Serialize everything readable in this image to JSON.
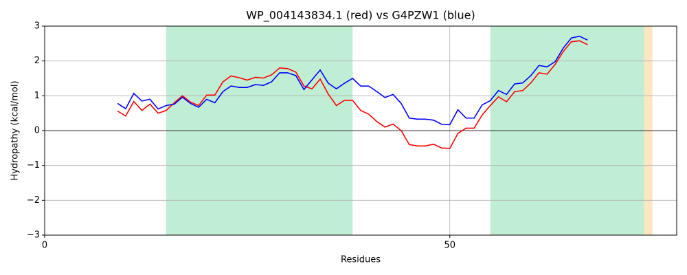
{
  "chart_data": {
    "type": "line",
    "title": "WP_004143834.1 (red) vs G4PZW1 (blue)",
    "xlabel": "Residues",
    "ylabel": "Hydropathy (kcal/mol)",
    "x": [
      9,
      10,
      11,
      12,
      13,
      14,
      15,
      16,
      17,
      18,
      19,
      20,
      21,
      22,
      23,
      24,
      25,
      26,
      27,
      28,
      29,
      30,
      31,
      32,
      33,
      34,
      35,
      36,
      37,
      38,
      39,
      40,
      41,
      42,
      43,
      44,
      45,
      46,
      47,
      48,
      49,
      50,
      51,
      52,
      53,
      54,
      55,
      56,
      57,
      58,
      59,
      60,
      61,
      62,
      63,
      64,
      65,
      66,
      67
    ],
    "series": [
      {
        "name": "WP_004143834.1",
        "color": "red",
        "values": [
          0.56,
          0.42,
          0.84,
          0.58,
          0.76,
          0.5,
          0.58,
          0.8,
          1.0,
          0.82,
          0.72,
          1.02,
          1.02,
          1.4,
          1.57,
          1.52,
          1.45,
          1.53,
          1.51,
          1.6,
          1.8,
          1.78,
          1.68,
          1.28,
          1.2,
          1.48,
          1.05,
          0.72,
          0.87,
          0.87,
          0.58,
          0.47,
          0.26,
          0.1,
          0.19,
          0.0,
          -0.4,
          -0.44,
          -0.44,
          -0.39,
          -0.5,
          -0.51,
          -0.08,
          0.07,
          0.07,
          0.45,
          0.72,
          0.97,
          0.83,
          1.12,
          1.15,
          1.37,
          1.66,
          1.62,
          1.9,
          2.27,
          2.55,
          2.58,
          2.47
        ]
      },
      {
        "name": "G4PZW1",
        "color": "blue",
        "values": [
          0.78,
          0.63,
          1.07,
          0.85,
          0.9,
          0.62,
          0.72,
          0.76,
          0.96,
          0.78,
          0.67,
          0.9,
          0.8,
          1.12,
          1.28,
          1.24,
          1.24,
          1.32,
          1.3,
          1.4,
          1.66,
          1.66,
          1.58,
          1.18,
          1.46,
          1.74,
          1.36,
          1.2,
          1.36,
          1.5,
          1.28,
          1.28,
          1.12,
          0.95,
          1.04,
          0.78,
          0.36,
          0.33,
          0.33,
          0.3,
          0.18,
          0.17,
          0.6,
          0.36,
          0.36,
          0.74,
          0.86,
          1.15,
          1.04,
          1.34,
          1.37,
          1.58,
          1.87,
          1.83,
          1.98,
          2.37,
          2.66,
          2.71,
          2.6
        ]
      }
    ],
    "regions": [
      {
        "start": 15,
        "end": 38,
        "color": "#c0eed4"
      },
      {
        "start": 55,
        "end": 74,
        "color": "#c0eed4"
      },
      {
        "start": 74,
        "end": 75,
        "color": "#fde6c0"
      }
    ],
    "xlim": [
      0,
      78
    ],
    "xticks": [
      0,
      50
    ],
    "ylim": [
      -3,
      3
    ],
    "yticks": [
      {
        "value": -3,
        "label": "−3"
      },
      {
        "value": -2,
        "label": "−2"
      },
      {
        "value": -1,
        "label": "−1"
      },
      0,
      1,
      2,
      3
    ],
    "grid": true
  }
}
